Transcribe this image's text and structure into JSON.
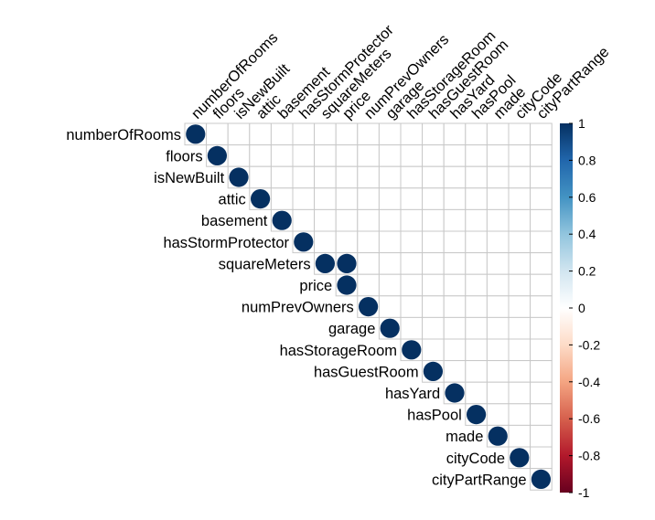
{
  "chart_data": {
    "type": "heatmap",
    "style": "corrplot-upper-circles",
    "variables": [
      "numberOfRooms",
      "floors",
      "isNewBuilt",
      "attic",
      "basement",
      "hasStormProtector",
      "squareMeters",
      "price",
      "numPrevOwners",
      "garage",
      "hasStorageRoom",
      "hasGuestRoom",
      "hasYard",
      "hasPool",
      "made",
      "cityCode",
      "cityPartRange"
    ],
    "cells": [
      {
        "row": "numberOfRooms",
        "col": "numberOfRooms",
        "value": 1
      },
      {
        "row": "floors",
        "col": "floors",
        "value": 1
      },
      {
        "row": "isNewBuilt",
        "col": "isNewBuilt",
        "value": 1
      },
      {
        "row": "attic",
        "col": "attic",
        "value": 1
      },
      {
        "row": "basement",
        "col": "basement",
        "value": 1
      },
      {
        "row": "hasStormProtector",
        "col": "hasStormProtector",
        "value": 1
      },
      {
        "row": "squareMeters",
        "col": "squareMeters",
        "value": 1
      },
      {
        "row": "squareMeters",
        "col": "price",
        "value": 1
      },
      {
        "row": "price",
        "col": "price",
        "value": 1
      },
      {
        "row": "numPrevOwners",
        "col": "numPrevOwners",
        "value": 1
      },
      {
        "row": "garage",
        "col": "garage",
        "value": 1
      },
      {
        "row": "hasStorageRoom",
        "col": "hasStorageRoom",
        "value": 1
      },
      {
        "row": "hasGuestRoom",
        "col": "hasGuestRoom",
        "value": 1
      },
      {
        "row": "hasYard",
        "col": "hasYard",
        "value": 1
      },
      {
        "row": "hasPool",
        "col": "hasPool",
        "value": 1
      },
      {
        "row": "made",
        "col": "made",
        "value": 1
      },
      {
        "row": "cityCode",
        "col": "cityCode",
        "value": 1
      },
      {
        "row": "cityPartRange",
        "col": "cityPartRange",
        "value": 1
      }
    ],
    "color_scale": {
      "range": [
        -1,
        1
      ],
      "ticks": [
        "1",
        "0.8",
        "0.6",
        "0.4",
        "0.2",
        "0",
        "-0.2",
        "-0.4",
        "-0.6",
        "-0.8",
        "-1"
      ],
      "colors": [
        "#67001F",
        "#B2182B",
        "#D6604D",
        "#F4A582",
        "#FDDBC7",
        "#FFFFFF",
        "#D1E5F0",
        "#92C5DE",
        "#4393C3",
        "#2166AC",
        "#053061"
      ]
    },
    "grid": true
  }
}
